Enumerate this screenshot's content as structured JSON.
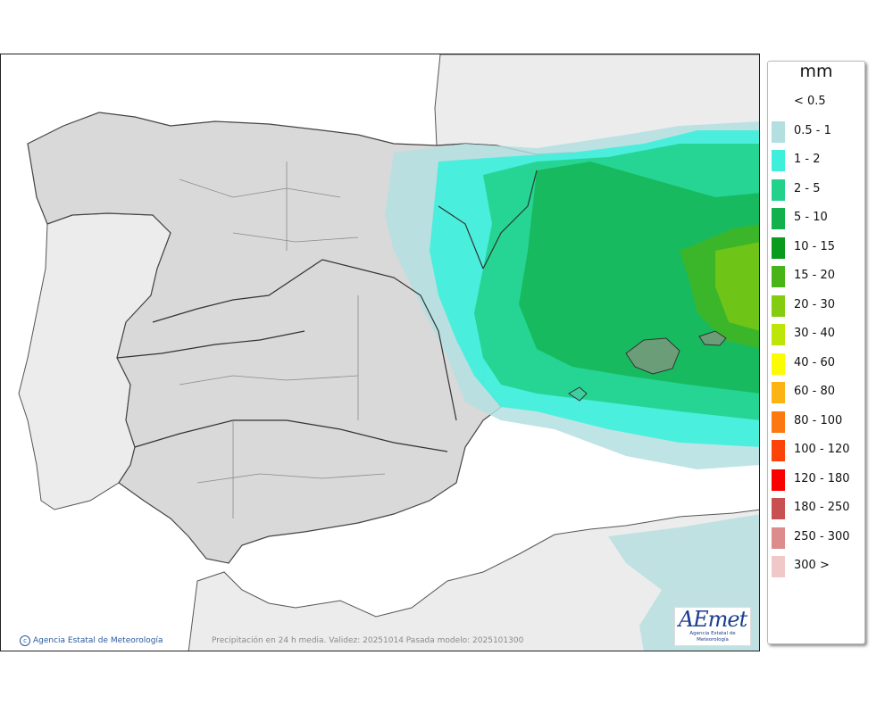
{
  "legend": {
    "title": "mm",
    "items": [
      {
        "label": "< 0.5",
        "color": "#ffffff"
      },
      {
        "label": "0.5 - 1",
        "color": "#b4dfe0"
      },
      {
        "label": "1 - 2",
        "color": "#3ef0dc"
      },
      {
        "label": "2 - 5",
        "color": "#22d28c"
      },
      {
        "label": "5 - 10",
        "color": "#13b04e"
      },
      {
        "label": "10 - 15",
        "color": "#0a9a1e"
      },
      {
        "label": "15 - 20",
        "color": "#48b418"
      },
      {
        "label": "20 - 30",
        "color": "#84cc10"
      },
      {
        "label": "30 - 40",
        "color": "#bde608"
      },
      {
        "label": "40 - 60",
        "color": "#fcfc00"
      },
      {
        "label": "60 - 80",
        "color": "#fcb414"
      },
      {
        "label": "80 - 100",
        "color": "#fc7810"
      },
      {
        "label": "100 - 120",
        "color": "#fc4408"
      },
      {
        "label": "120 - 180",
        "color": "#fc0000"
      },
      {
        "label": "180 - 250",
        "color": "#c85050"
      },
      {
        "label": "250 - 300",
        "color": "#dc8c8c"
      },
      {
        "label": "300 >",
        "color": "#f0c8c8"
      }
    ]
  },
  "credit": {
    "text": "Agencia Estatal de Meteorología",
    "icon": "copyright-icon"
  },
  "footer": {
    "text": "Precipitación en 24 h media. Validez: 20251014 Pasada modelo: 2025101300"
  },
  "logo": {
    "word": "AEmet",
    "subtitle": "Agencia Estatal de Meteorología"
  },
  "map": {
    "land_color": "#d9d9d9",
    "foreign_land_color": "#ececec",
    "sea_color": "#ffffff",
    "border_color": "#333333"
  }
}
